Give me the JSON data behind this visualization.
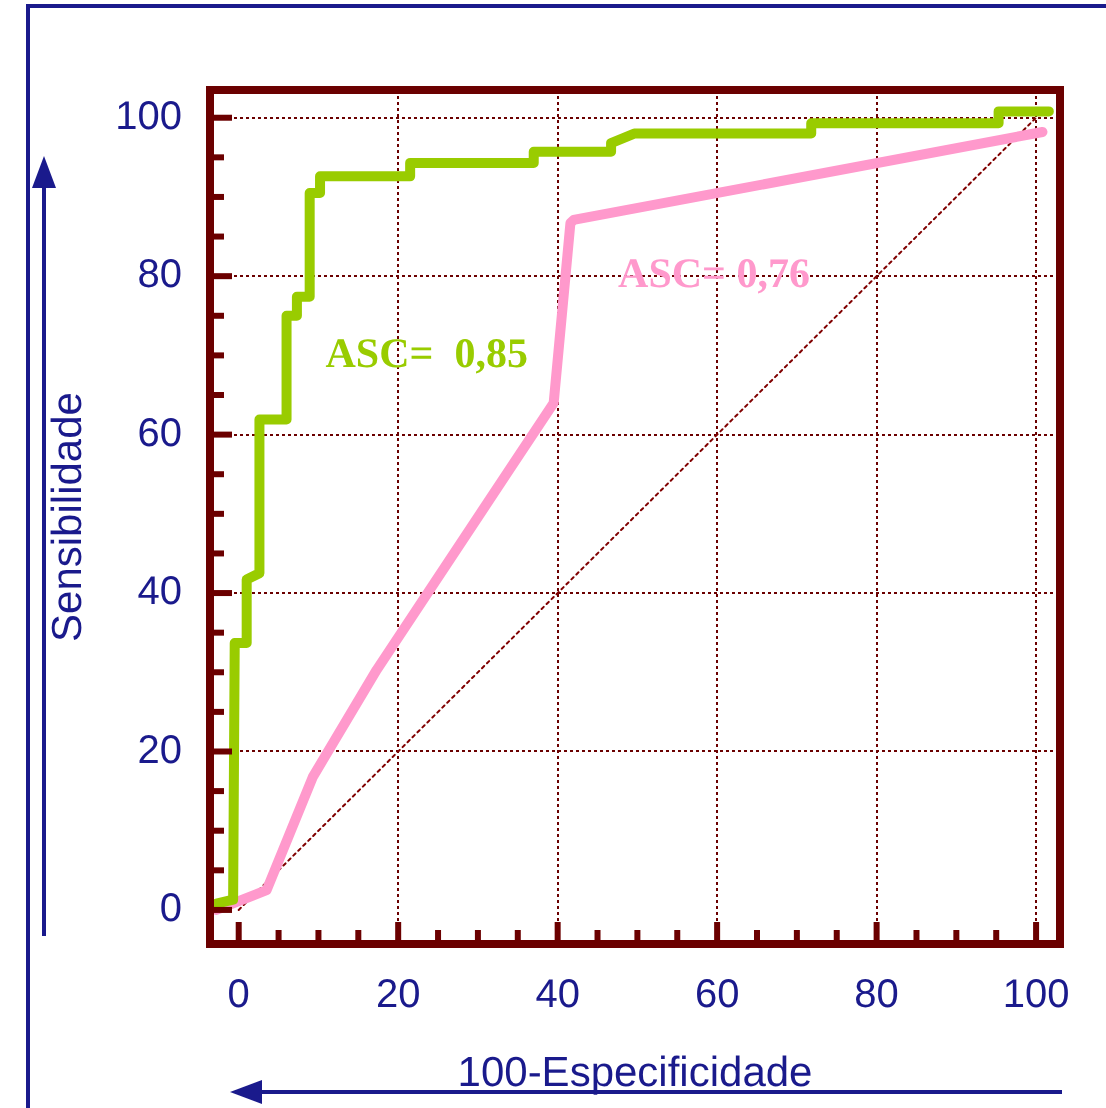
{
  "chart_data": {
    "type": "line",
    "xlabel": "100-Especificidade",
    "ylabel": "Sensibilidade",
    "xlim": [
      -3.6,
      103
    ],
    "ylim": [
      -4.3,
      103.5
    ],
    "xticks": [
      0,
      {
        "value": 5,
        "label": null
      },
      {
        "value": 10,
        "label": null
      },
      {
        "value": 15,
        "label": null
      },
      20,
      {
        "value": 25,
        "label": null
      },
      {
        "value": 30,
        "label": null
      },
      {
        "value": 35,
        "label": null
      },
      40,
      {
        "value": 45,
        "label": null
      },
      {
        "value": 50,
        "label": null
      },
      {
        "value": 55,
        "label": null
      },
      60,
      {
        "value": 65,
        "label": null
      },
      {
        "value": 70,
        "label": null
      },
      {
        "value": 75,
        "label": null
      },
      80,
      {
        "value": 85,
        "label": null
      },
      {
        "value": 90,
        "label": null
      },
      {
        "value": 95,
        "label": null
      },
      100
    ],
    "yticks": [
      0,
      {
        "value": 5,
        "label": null
      },
      {
        "value": 10,
        "label": null
      },
      {
        "value": 15,
        "label": null
      },
      20,
      {
        "value": 25,
        "label": null
      },
      {
        "value": 30,
        "label": null
      },
      {
        "value": 35,
        "label": null
      },
      40,
      {
        "value": 45,
        "label": null
      },
      {
        "value": 50,
        "label": null
      },
      {
        "value": 55,
        "label": null
      },
      60,
      {
        "value": 65,
        "label": null
      },
      {
        "value": 70,
        "label": null
      },
      {
        "value": 75,
        "label": null
      },
      80,
      {
        "value": 85,
        "label": null
      },
      {
        "value": 90,
        "label": null
      },
      {
        "value": 95,
        "label": null
      },
      100
    ],
    "grid": true,
    "legend": false,
    "marker": "none",
    "series": [
      {
        "color": "#99cc00",
        "x": [
          -2.8,
          -0.7,
          -0.5,
          1,
          1,
          2.6,
          2.6,
          6,
          6,
          7.3,
          7.3,
          8.9,
          8.9,
          10.2,
          10.2,
          21.5,
          21.5,
          37,
          37,
          46.7,
          46.7,
          49.6,
          71.8,
          71.8,
          95.3,
          95.3,
          101.6
        ],
        "values": [
          0.8,
          1.3,
          33.7,
          33.7,
          41.7,
          42.5,
          61.9,
          61.9,
          75,
          75,
          77.4,
          77.4,
          90.5,
          90.5,
          92.6,
          92.6,
          94.3,
          94.3,
          95.7,
          95.7,
          96.8,
          98,
          98,
          99.3,
          99.3,
          100.8,
          100.8
        ]
      },
      {
        "color": "#ff99cc",
        "x": [
          -2.8,
          3.5,
          9.3,
          17.3,
          39.5,
          41.6,
          42,
          100.8
        ],
        "values": [
          0,
          2.5,
          16.8,
          30.3,
          64,
          86.7,
          87.1,
          98.2
        ]
      },
      {
        "color": "#800000",
        "line_style": "dotted",
        "x": [
          0,
          100
        ],
        "values": [
          0,
          100
        ]
      }
    ],
    "annotations": [
      "ASC=  0,85",
      "ASC= 0,76"
    ]
  }
}
